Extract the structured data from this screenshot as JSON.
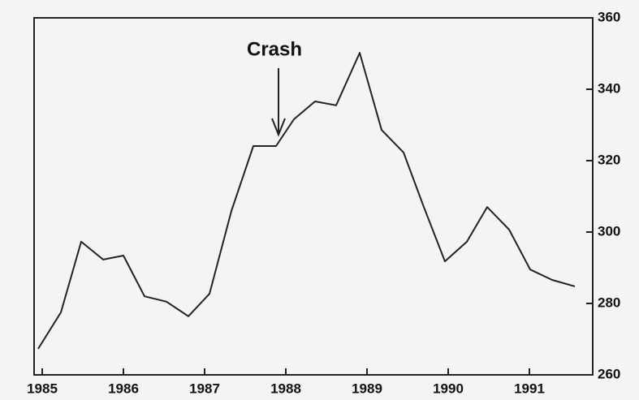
{
  "chart_data": {
    "type": "line",
    "annotation": "Crash",
    "x": [
      1984.95,
      1985.23,
      1985.48,
      1985.75,
      1986.0,
      1986.26,
      1986.53,
      1986.8,
      1987.06,
      1987.33,
      1987.6,
      1987.88,
      1988.1,
      1988.36,
      1988.62,
      1988.91,
      1989.18,
      1989.45,
      1989.7,
      1989.96,
      1990.23,
      1990.48,
      1990.75,
      1991.01,
      1991.28,
      1991.56
    ],
    "series": [
      {
        "color": "#222222",
        "values": [
          267.3,
          277.5,
          297.3,
          292.3,
          293.4,
          282,
          280.5,
          276.4,
          282.7,
          305.9,
          324.1,
          324.1,
          331.6,
          336.6,
          335.5,
          350.2,
          328.6,
          322.3,
          307,
          291.8,
          297.3,
          307,
          300.7,
          289.5,
          286.6,
          284.8
        ]
      }
    ],
    "xlim": [
      1984.9,
      1991.78
    ],
    "xticks": [
      1985,
      1986,
      1987,
      1988,
      1989,
      1990,
      1991
    ],
    "ylim": [
      260,
      360
    ],
    "yticks": [
      260,
      280,
      300,
      320,
      340,
      360
    ],
    "y_axis_side": "right"
  }
}
